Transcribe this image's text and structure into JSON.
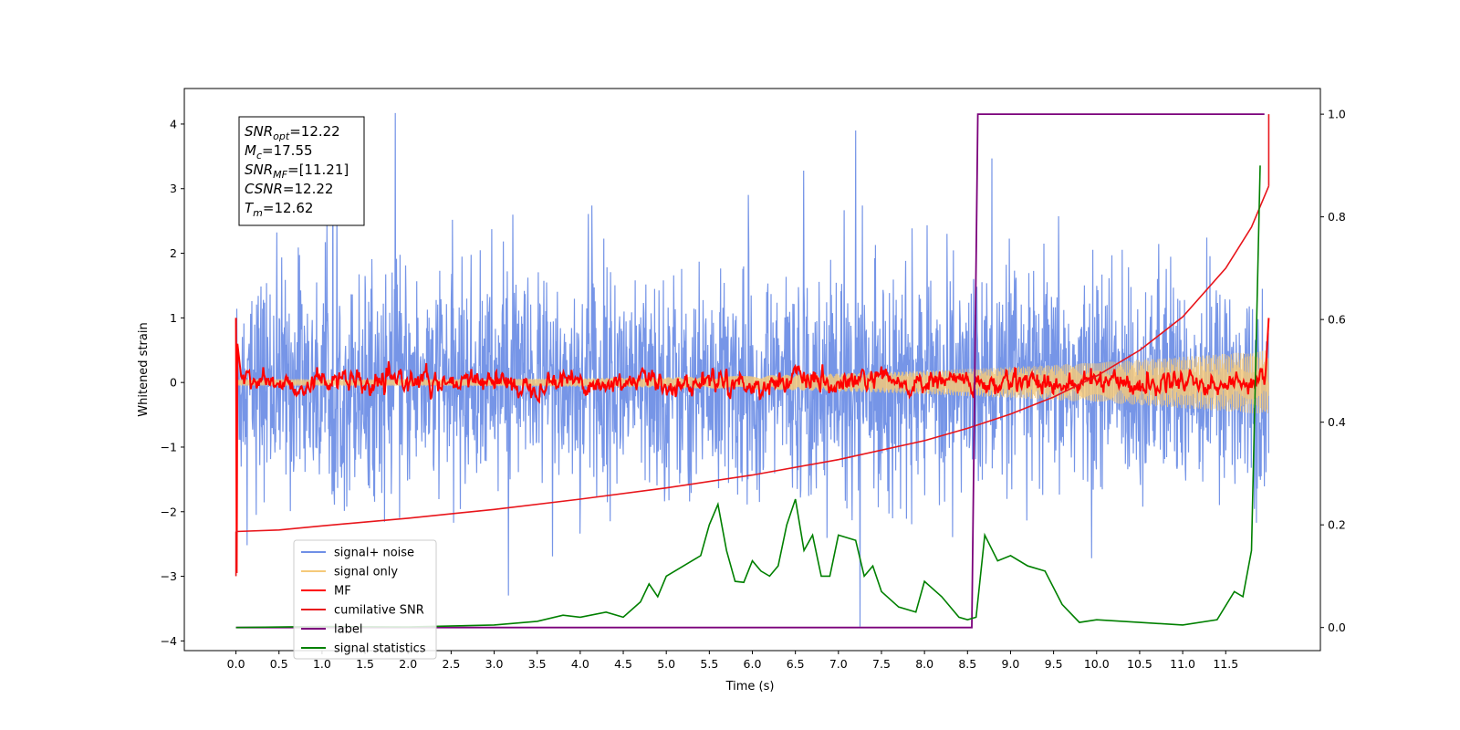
{
  "chart_data": {
    "type": "line",
    "xlabel": "Time (s)",
    "ylabel": "Whitened strain",
    "xlim": [
      -0.6,
      12.6
    ],
    "ylim": [
      -4.15,
      4.55
    ],
    "y2lim": [
      -0.045,
      1.05
    ],
    "x_ticks": [
      "0.0",
      "0.5",
      "1.0",
      "1.5",
      "2.0",
      "2.5",
      "3.0",
      "3.5",
      "4.0",
      "4.5",
      "5.0",
      "5.5",
      "6.0",
      "6.5",
      "7.0",
      "7.5",
      "8.0",
      "8.5",
      "9.0",
      "9.5",
      "10.0",
      "10.5",
      "11.0",
      "11.5"
    ],
    "y_ticks": [
      "4",
      "3",
      "2",
      "1",
      "0",
      "−1",
      "−2",
      "−3",
      "−4"
    ],
    "y2_ticks": [
      "1.0",
      "0.8",
      "0.6",
      "0.4",
      "0.2",
      "0.0"
    ],
    "annotation": [
      {
        "base": "SNR",
        "sub": "opt",
        "rest": "=12.22"
      },
      {
        "base": "M",
        "sub": "c",
        "rest": "=17.55"
      },
      {
        "base": "SNR",
        "sub": "MF",
        "rest": "=[11.21]"
      },
      {
        "base": "CSNR",
        "sub": "",
        "rest": "=12.22"
      },
      {
        "base": "T",
        "sub": "m",
        "rest": "=12.62"
      }
    ],
    "legend_position": "lower-left",
    "series": [
      {
        "name": "signal+ noise",
        "color": "#6f8fe6",
        "axis": "left",
        "style": "noise band approx. -2.4 to 2.4 with spikes up to 4.17 and down to -3.8"
      },
      {
        "name": "signal only",
        "color": "#f5c97a",
        "axis": "left",
        "style": "chirp, amplitude growing from ~0.05 to ~0.5 near 12.0 s"
      },
      {
        "name": "MF",
        "color": "#ff0000",
        "axis": "left",
        "style": "jagged line around 0, starting at 1.0 and -2.95"
      },
      {
        "name": "cumilative SNR",
        "color": "#e8151b",
        "axis": "right",
        "x": [
          0.0,
          0.5,
          1.0,
          2.0,
          3.0,
          4.0,
          5.0,
          6.0,
          7.0,
          8.0,
          8.5,
          9.0,
          9.5,
          10.0,
          10.5,
          11.0,
          11.5,
          11.8,
          12.0
        ],
        "y": [
          0.187,
          0.19,
          0.198,
          0.213,
          0.23,
          0.25,
          0.272,
          0.297,
          0.327,
          0.364,
          0.388,
          0.416,
          0.449,
          0.49,
          0.54,
          0.605,
          0.7,
          0.78,
          0.86
        ]
      },
      {
        "name": "label",
        "color": "#7b007b",
        "axis": "right",
        "x": [
          0.0,
          8.55,
          8.62,
          11.95
        ],
        "y": [
          0.0,
          0.0,
          1.0,
          1.0
        ]
      },
      {
        "name": "signal statistics",
        "color": "#008000",
        "axis": "right",
        "x": [
          0.0,
          1.0,
          2.0,
          3.0,
          3.5,
          3.8,
          4.0,
          4.3,
          4.5,
          4.7,
          4.8,
          4.9,
          5.0,
          5.2,
          5.4,
          5.5,
          5.6,
          5.7,
          5.8,
          5.9,
          6.0,
          6.1,
          6.2,
          6.3,
          6.4,
          6.5,
          6.6,
          6.7,
          6.8,
          6.9,
          7.0,
          7.2,
          7.3,
          7.4,
          7.5,
          7.7,
          7.9,
          8.0,
          8.2,
          8.4,
          8.5,
          8.6,
          8.7,
          8.85,
          9.0,
          9.2,
          9.4,
          9.6,
          9.8,
          10.0,
          10.5,
          11.0,
          11.4,
          11.6,
          11.7,
          11.8,
          11.9
        ],
        "y": [
          0.0,
          0.002,
          0.001,
          0.005,
          0.012,
          0.024,
          0.02,
          0.03,
          0.02,
          0.05,
          0.085,
          0.06,
          0.1,
          0.12,
          0.14,
          0.2,
          0.24,
          0.15,
          0.09,
          0.088,
          0.13,
          0.11,
          0.1,
          0.12,
          0.2,
          0.25,
          0.15,
          0.18,
          0.1,
          0.1,
          0.18,
          0.17,
          0.1,
          0.12,
          0.07,
          0.04,
          0.03,
          0.09,
          0.06,
          0.02,
          0.015,
          0.02,
          0.18,
          0.13,
          0.14,
          0.12,
          0.11,
          0.045,
          0.01,
          0.015,
          0.01,
          0.005,
          0.015,
          0.07,
          0.06,
          0.15,
          0.9
        ]
      }
    ]
  }
}
